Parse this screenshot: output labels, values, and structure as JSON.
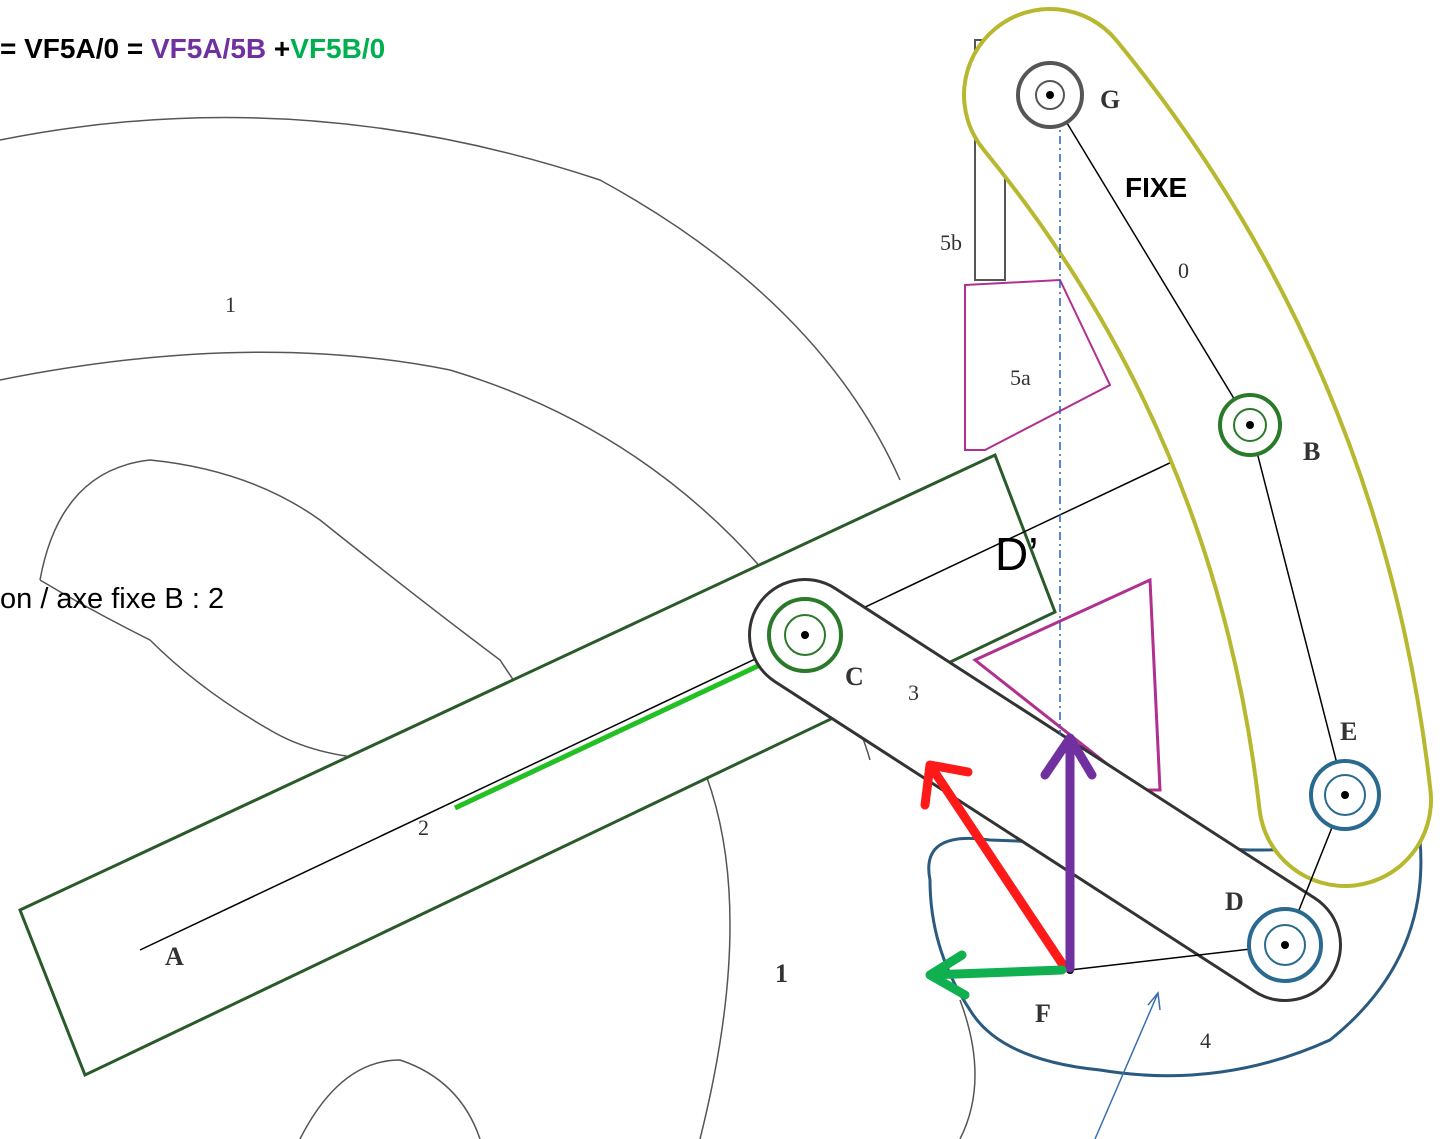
{
  "header": {
    "equation": [
      {
        "text": "= VF5A/0 = ",
        "color": "#000000"
      },
      {
        "text": "VF5A/5B",
        "color": "#7030a0"
      },
      {
        "text": " +",
        "color": "#000000"
      },
      {
        "text": "VF5B/0",
        "color": "#00b050"
      }
    ]
  },
  "notes": {
    "fixed": "FIXE",
    "rotation": "on / axe fixe B : 2",
    "point": "D’"
  },
  "labels": {
    "G": "G",
    "B": "B",
    "E": "E",
    "D": "D",
    "F": "F",
    "C": "C",
    "A": "A",
    "part1": "1",
    "part0": "0",
    "part2": "2",
    "part3": "3",
    "part4": "4",
    "part5a": "5a",
    "part5b": "5b",
    "part1b": "1"
  }
}
